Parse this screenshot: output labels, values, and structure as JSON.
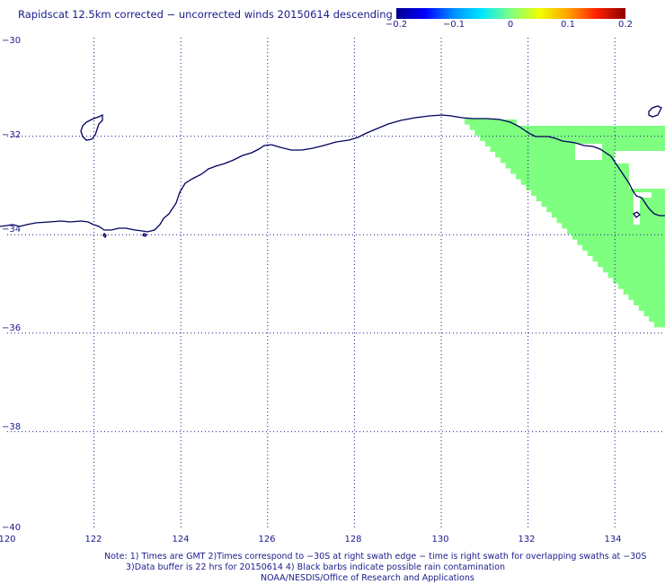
{
  "title": "Rapidscat 12.5km corrected − uncorrected winds 20150614 descending",
  "colorbar": {
    "ticks": [
      "−0.2",
      "−0.1",
      "0",
      "0.1",
      "0.2"
    ],
    "range": [
      -0.2,
      0.2
    ],
    "colors": [
      "#00008c",
      "#0000ff",
      "#0090ff",
      "#00e8ff",
      "#7fff7f",
      "#f0ff00",
      "#ffa000",
      "#ff2000",
      "#8c0000"
    ]
  },
  "map": {
    "lon_range": [
      120,
      135
    ],
    "lat_range": [
      -40,
      -30
    ],
    "lon_ticks": [
      "120",
      "122",
      "124",
      "126",
      "128",
      "130",
      "132",
      "134"
    ],
    "lat_ticks": [
      "−30",
      "−32",
      "−34",
      "−36",
      "−38",
      "−40"
    ],
    "coastline_color": "#000060",
    "grid": "dotted",
    "swath_color": "#7fff7f",
    "swath_value": 0.0
  },
  "notes": {
    "line1": "Note: 1) Times are GMT 2)Times correspond to −30S at right swath edge − time is right swath for overlapping swaths at −30S",
    "line2": "3)Data buffer is 22 hrs for 20150614 4) Black barbs indicate possible rain contamination",
    "line3": "NOAA/NESDIS/Office of Research and Applications"
  }
}
